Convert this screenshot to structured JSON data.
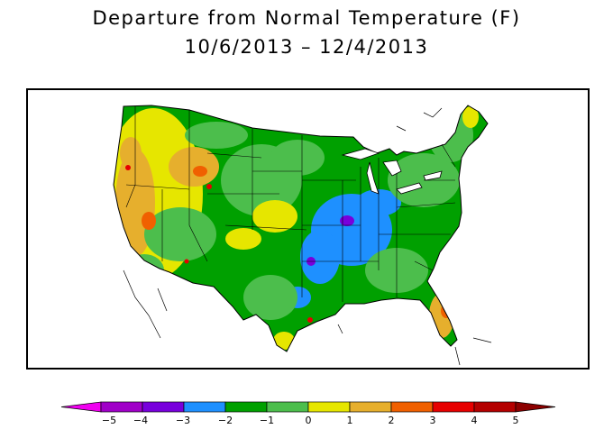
{
  "title": "Departure from Normal Temperature (F)",
  "subtitle": "10/6/2013 – 12/4/2013",
  "legend": {
    "ticks": [
      "−5",
      "−4",
      "−3",
      "−2",
      "−1",
      "0",
      "1",
      "2",
      "3",
      "4",
      "5"
    ],
    "colors": {
      "below_-5": "#f000f0",
      "-5_-4": "#a000c8",
      "-4_-3": "#7800dc",
      "-3_-2": "#1e90ff",
      "-2_-1": "#00a000",
      "-1_0": "#4cbe4c",
      "0_1": "#e6e600",
      "1_2": "#e6af2d",
      "2_3": "#f06000",
      "3_4": "#e60000",
      "4_5": "#b40000",
      "above_5": "#8c0000"
    }
  },
  "map": {
    "region": "Contiguous United States",
    "features": [
      "state-boundaries",
      "coastline",
      "great-lakes"
    ]
  }
}
